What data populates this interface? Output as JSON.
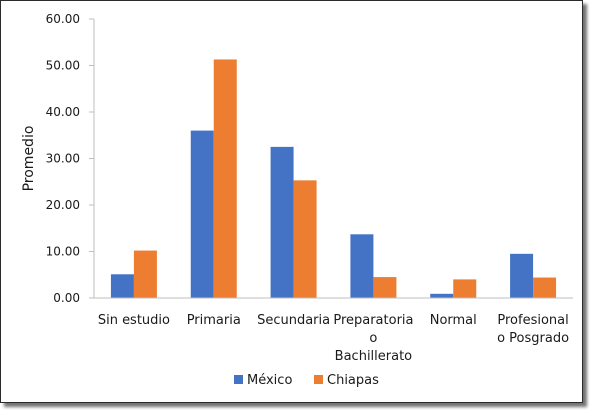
{
  "chart_data": {
    "type": "bar",
    "title": "",
    "xlabel": "",
    "ylabel": "Promedio",
    "ylim": [
      0,
      60
    ],
    "yticks": [
      "0.00",
      "10.00",
      "20.00",
      "30.00",
      "40.00",
      "50.00",
      "60.00"
    ],
    "categories": [
      [
        "Sin estudio"
      ],
      [
        "Primaria"
      ],
      [
        "Secundaria"
      ],
      [
        "Preparatoria",
        "o",
        "Bachillerato"
      ],
      [
        "Normal"
      ],
      [
        "Profesional",
        "o Posgrado"
      ]
    ],
    "series": [
      {
        "name": "México",
        "color": "#4472C4",
        "values": [
          5.1,
          36.0,
          32.5,
          13.7,
          0.9,
          9.5
        ]
      },
      {
        "name": "Chiapas",
        "color": "#ED7D31",
        "values": [
          10.2,
          51.3,
          25.3,
          4.5,
          4.0,
          4.4
        ]
      }
    ],
    "grid": false,
    "legend": "bottom-center"
  }
}
